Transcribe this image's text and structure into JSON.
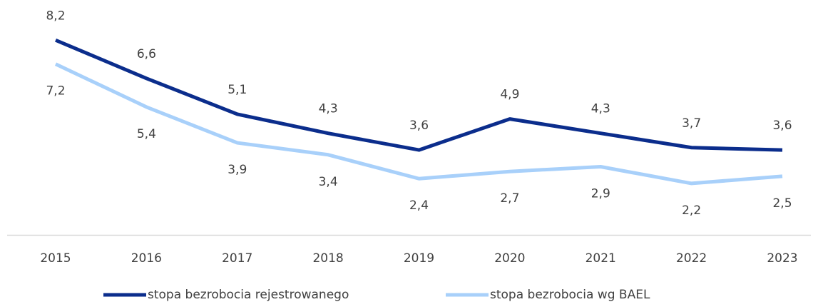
{
  "chart_data": {
    "type": "line",
    "categories": [
      "2015",
      "2016",
      "2017",
      "2018",
      "2019",
      "2020",
      "2021",
      "2022",
      "2023"
    ],
    "series": [
      {
        "name": "stopa bezrobocia rejestrowanego",
        "color": "#0b2d8c",
        "values": [
          8.2,
          6.6,
          5.1,
          4.3,
          3.6,
          4.9,
          4.3,
          3.7,
          3.6
        ],
        "value_labels": [
          "8,2",
          "6,6",
          "5,1",
          "4,3",
          "3,6",
          "4,9",
          "4,3",
          "3,7",
          "3,6"
        ],
        "label_position": "above"
      },
      {
        "name": "stopa bezrobocia wg BAEL",
        "color": "#a8d0fa",
        "values": [
          7.2,
          5.4,
          3.9,
          3.4,
          2.4,
          2.7,
          2.9,
          2.2,
          2.5
        ],
        "value_labels": [
          "7,2",
          "5,4",
          "3,9",
          "3,4",
          "2,4",
          "2,7",
          "2,9",
          "2,2",
          "2,5"
        ],
        "label_position": "below"
      }
    ],
    "ylim": [
      0,
      9
    ],
    "legend": "bottom"
  }
}
